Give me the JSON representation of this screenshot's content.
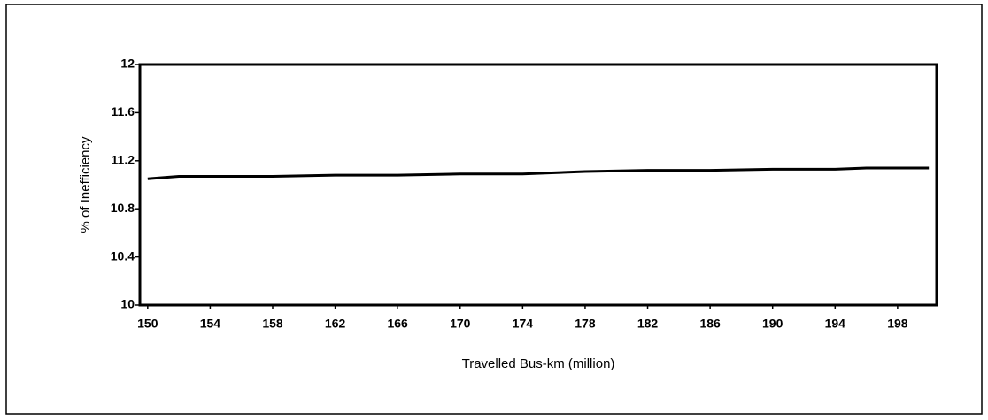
{
  "chart_data": {
    "type": "line",
    "x_label": "Travelled Bus-km (million)",
    "y_label": "% of Inefficiency",
    "x": [
      150,
      152,
      158,
      162,
      166,
      170,
      174,
      178,
      182,
      186,
      190,
      194,
      196,
      200
    ],
    "series": [
      {
        "name": "% of Inefficiency",
        "color": "#000000",
        "values": [
          11.05,
          11.07,
          11.07,
          11.08,
          11.08,
          11.09,
          11.09,
          11.11,
          11.12,
          11.12,
          11.13,
          11.13,
          11.14,
          11.14
        ]
      }
    ],
    "xlim": [
      149.5,
      200.5
    ],
    "xticks": [
      150,
      154,
      158,
      162,
      166,
      170,
      174,
      178,
      182,
      186,
      190,
      194,
      198
    ],
    "ylim": [
      10,
      12
    ],
    "yticks": [
      10,
      10.4,
      10.8,
      11.2,
      11.6,
      12
    ],
    "grid": false
  }
}
